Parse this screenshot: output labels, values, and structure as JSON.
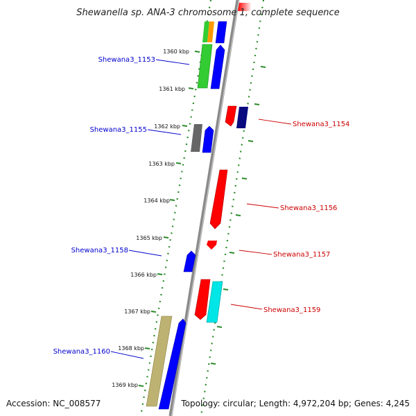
{
  "title": "Shewanella sp. ANA-3 chromosome 1, complete sequence",
  "footer": {
    "accession": "Accession: NC_008577",
    "summary": "Topology: circular; Length: 4,972,204 bp; Genes: 4,245"
  },
  "scale_labels": [
    "1360 kbp",
    "1361 kbp",
    "1362 kbp",
    "1363 kbp",
    "1364 kbp",
    "1365 kbp",
    "1366 kbp",
    "1367 kbp",
    "1368 kbp",
    "1369 kbp"
  ],
  "gene_labels": [
    {
      "text": "Shewana3_1153",
      "color": "#0000cc"
    },
    {
      "text": "Shewana3_1154",
      "color": "#cc0000"
    },
    {
      "text": "Shewana3_1155",
      "color": "#0000cc"
    },
    {
      "text": "Shewana3_1156",
      "color": "#cc0000"
    },
    {
      "text": "Shewana3_1157",
      "color": "#cc0000"
    },
    {
      "text": "Shewana3_1158",
      "color": "#0000cc"
    },
    {
      "text": "Shewana3_1159",
      "color": "#cc0000"
    },
    {
      "text": "Shewana3_1160",
      "color": "#0000cc"
    }
  ],
  "colors": {
    "backbone": "#8a8a8a",
    "dots": "#2a8a2a",
    "forward": "#0000ff",
    "reverse": "#ff0000"
  }
}
